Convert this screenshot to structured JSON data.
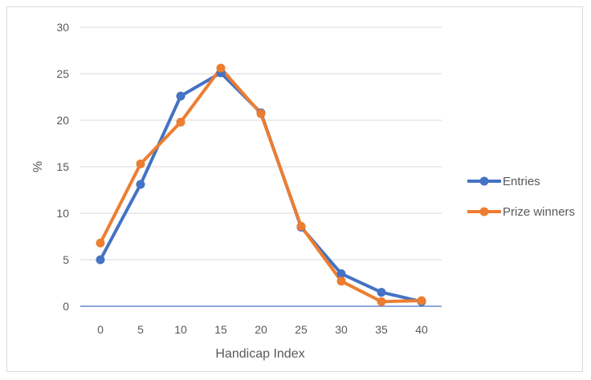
{
  "chart_data": {
    "type": "line",
    "title": "",
    "xlabel": "Handicap Index",
    "ylabel": "%",
    "x": [
      0,
      5,
      10,
      15,
      20,
      25,
      30,
      35,
      40
    ],
    "x_tick_labels": [
      "0",
      "5",
      "10",
      "15",
      "20",
      "25",
      "30",
      "35",
      "40"
    ],
    "y_tick_labels": [
      "0",
      "5",
      "10",
      "15",
      "20",
      "25",
      "30"
    ],
    "ylim": [
      0,
      30
    ],
    "grid": "horizontal",
    "legend_position": "right",
    "series": [
      {
        "name": "Entries",
        "color": "#4472C4",
        "values": [
          5.0,
          13.1,
          22.6,
          25.1,
          20.8,
          8.5,
          3.5,
          1.5,
          0.5
        ]
      },
      {
        "name": "Prize winners",
        "color": "#ED7D31",
        "values": [
          6.8,
          15.3,
          19.8,
          25.6,
          20.7,
          8.6,
          2.7,
          0.5,
          0.6
        ]
      }
    ]
  }
}
